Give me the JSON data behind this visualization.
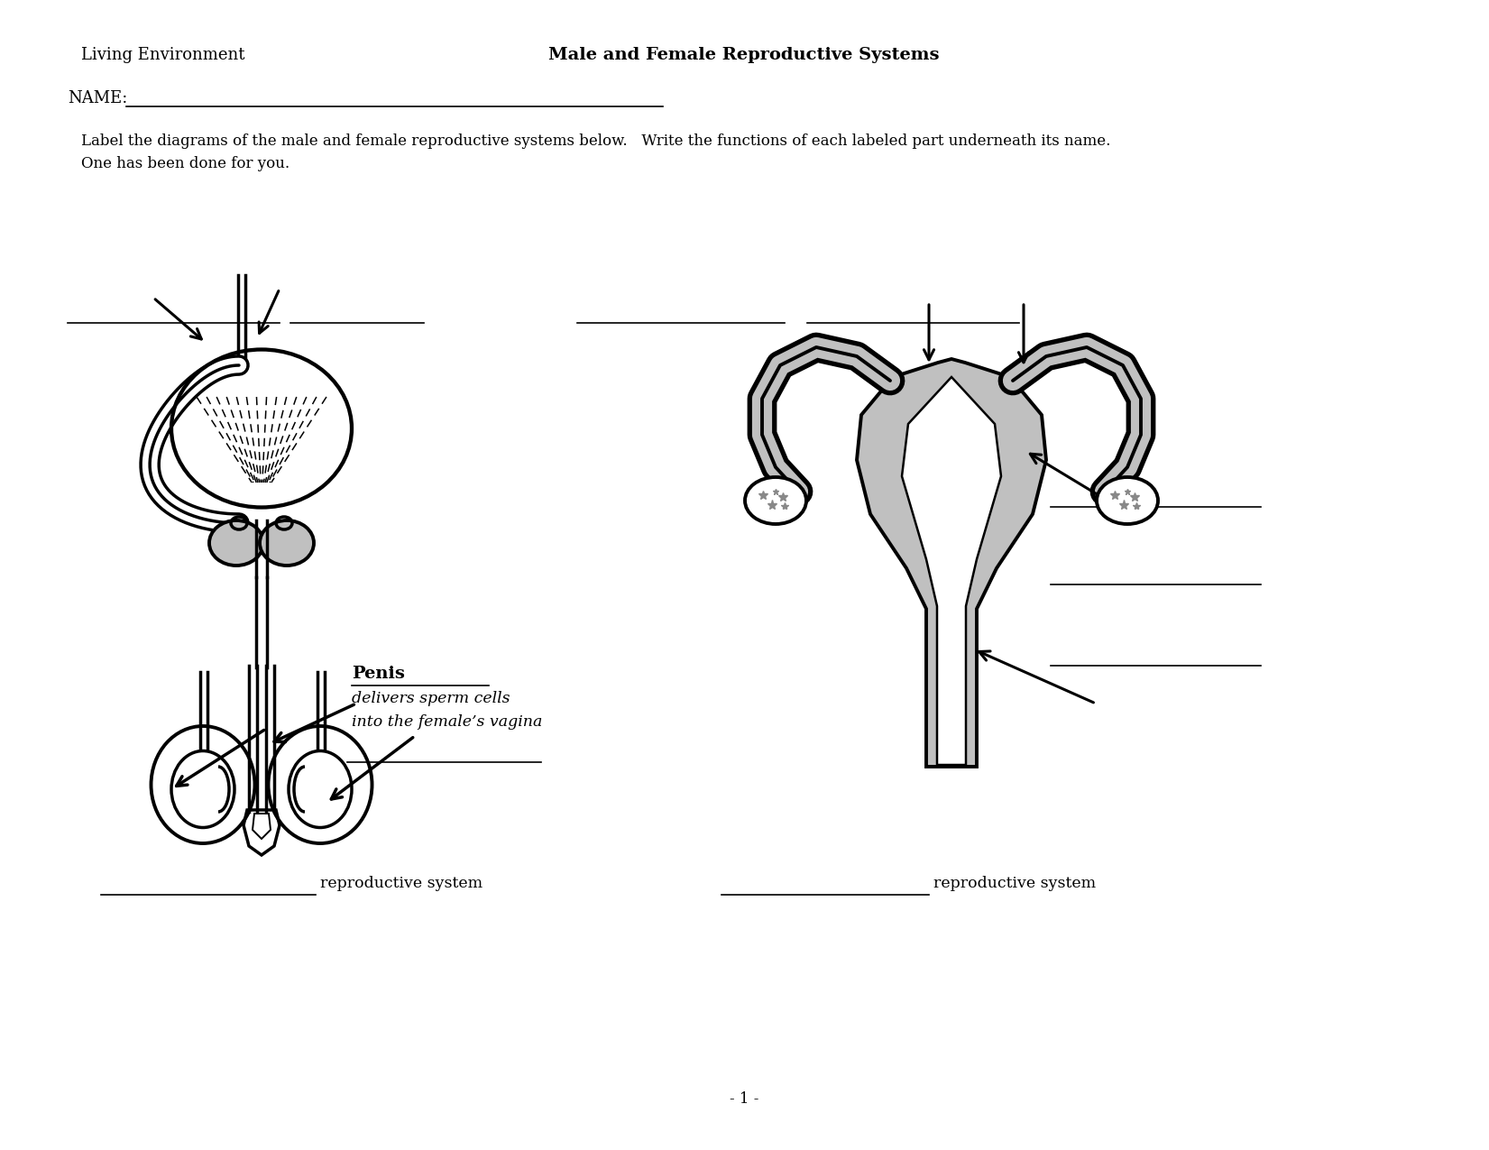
{
  "title": "Male and Female Reproductive Systems",
  "subtitle_left": "Living Environment",
  "name_label": "NAME:",
  "instruction_line1": "Label the diagrams of the male and female reproductive systems below.   Write the functions of each labeled part underneath its name.",
  "instruction_line2": "One has been done for you.",
  "penis_label": "Penis",
  "penis_fn1": "delivers sperm cells",
  "penis_fn2": "into the female’s vagina",
  "footer": "- 1 -",
  "left_system_text": "reproductive system",
  "right_system_text": "reproductive system",
  "bg_color": "#ffffff",
  "lc": "#000000",
  "gray": "#c0c0c0"
}
